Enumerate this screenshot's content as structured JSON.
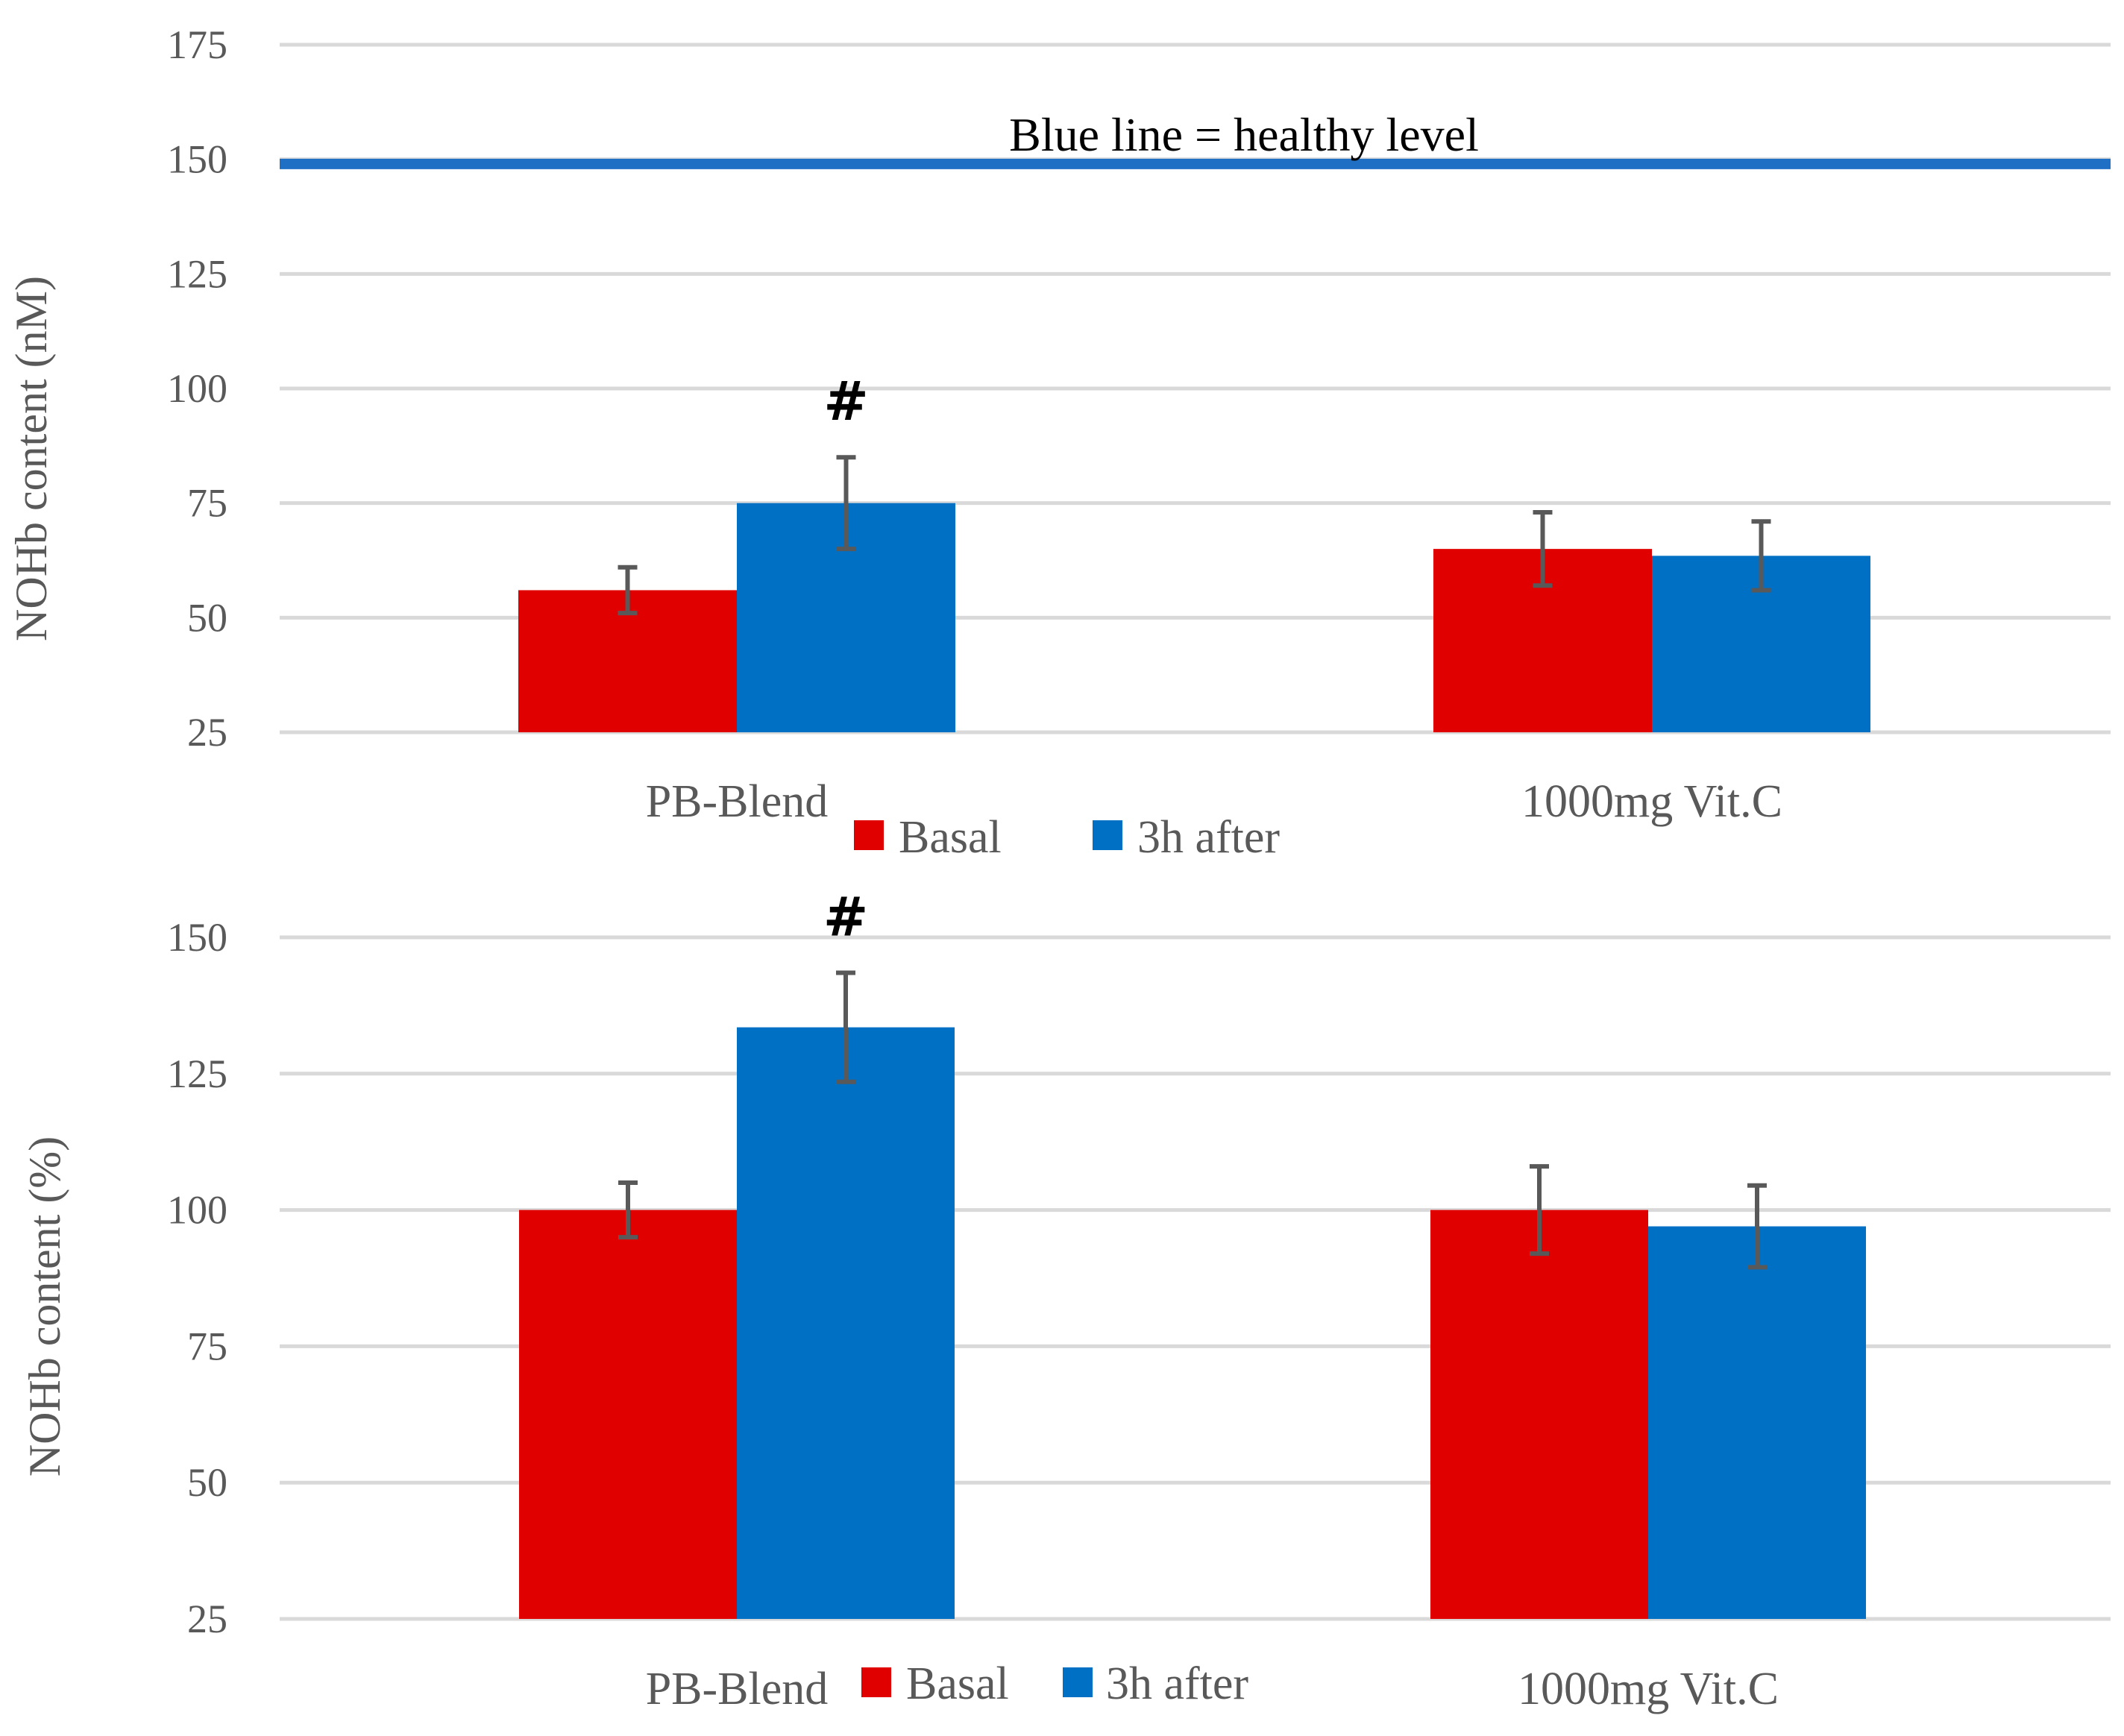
{
  "colors": {
    "basal": "#e00000",
    "after": "#0070c5",
    "grid": "#d9d9d9",
    "error": "#595959"
  },
  "chart_data": [
    {
      "type": "bar",
      "ylabel": "NOHb content (nM)",
      "ylim": [
        25,
        175
      ],
      "yticks": [
        "25",
        "50",
        "75",
        "100",
        "125",
        "150",
        "175"
      ],
      "categories": [
        "PB-Blend",
        "1000mg Vit.C"
      ],
      "series": [
        {
          "name": "Basal",
          "values": [
            56,
            65
          ],
          "errors": [
            5,
            8
          ]
        },
        {
          "name": "3h after",
          "values": [
            75,
            63.5
          ],
          "errors": [
            10,
            7.5
          ]
        }
      ],
      "reference_line": {
        "value": 149,
        "label": "Blue line = healthy level"
      },
      "significance": [
        {
          "category": "PB-Blend",
          "series": "3h after",
          "label": "#"
        }
      ],
      "legend": "bottom"
    },
    {
      "type": "bar",
      "ylabel": "NOHb content (%)",
      "ylim": [
        25,
        150
      ],
      "yticks": [
        "25",
        "50",
        "75",
        "100",
        "125",
        "150"
      ],
      "categories": [
        "PB-Blend",
        "1000mg Vit.C"
      ],
      "series": [
        {
          "name": "Basal",
          "values": [
            100,
            100
          ],
          "errors": [
            5,
            8
          ]
        },
        {
          "name": "3h after",
          "values": [
            133.5,
            97
          ],
          "errors": [
            10,
            7.5
          ]
        }
      ],
      "significance": [
        {
          "category": "PB-Blend",
          "series": "3h after",
          "label": "#"
        }
      ],
      "legend": "bottom"
    }
  ]
}
